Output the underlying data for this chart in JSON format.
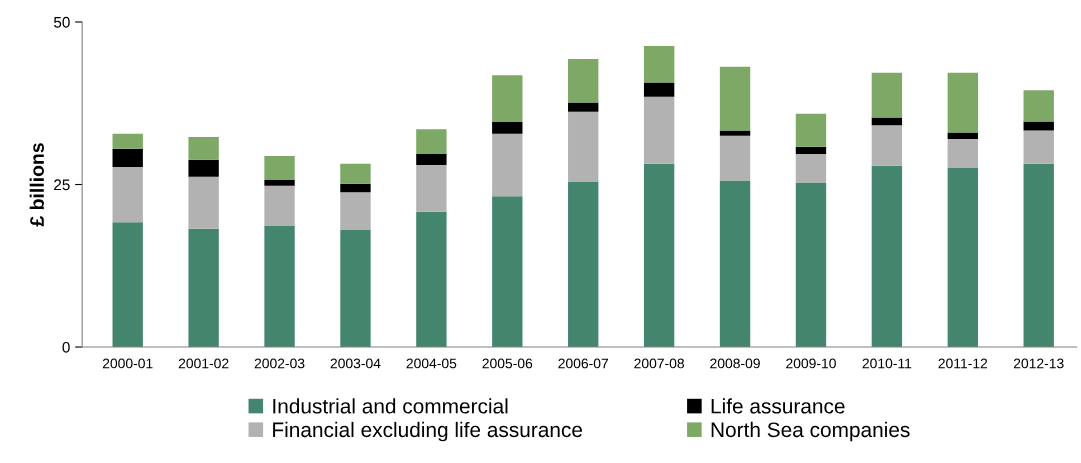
{
  "chart_data": {
    "type": "bar",
    "stacked": true,
    "ylabel": "£ billions",
    "categories": [
      "2000-01",
      "2001-02",
      "2002-03",
      "2003-04",
      "2004-05",
      "2005-06",
      "2006-07",
      "2007-08",
      "2008-09",
      "2009-10",
      "2010-11",
      "2011-12",
      "2012-13"
    ],
    "series": [
      {
        "name": "Industrial and commercial",
        "color": "#44866d",
        "values": [
          19.2,
          18.2,
          18.6,
          18.0,
          20.8,
          23.2,
          25.4,
          28.2,
          25.6,
          25.3,
          27.9,
          27.6,
          28.2
        ]
      },
      {
        "name": "Financial excluding life assurance",
        "color": "#b2b2b2",
        "values": [
          8.5,
          8.0,
          6.2,
          5.8,
          7.2,
          9.6,
          10.8,
          10.3,
          6.9,
          4.4,
          6.2,
          4.4,
          5.1
        ]
      },
      {
        "name": "Life assurance",
        "color": "#000000",
        "values": [
          2.8,
          2.6,
          0.9,
          1.3,
          1.7,
          1.8,
          1.4,
          2.2,
          0.8,
          1.1,
          1.2,
          1.0,
          1.4
        ]
      },
      {
        "name": "North Sea companies",
        "color": "#7ea866",
        "values": [
          2.3,
          3.5,
          3.7,
          3.1,
          3.8,
          7.2,
          6.7,
          5.6,
          9.8,
          5.1,
          6.9,
          9.2,
          4.8
        ]
      }
    ],
    "ylim": [
      0,
      50
    ],
    "yticks": [
      0,
      25,
      50
    ],
    "grid": false,
    "legend": "bottom"
  }
}
